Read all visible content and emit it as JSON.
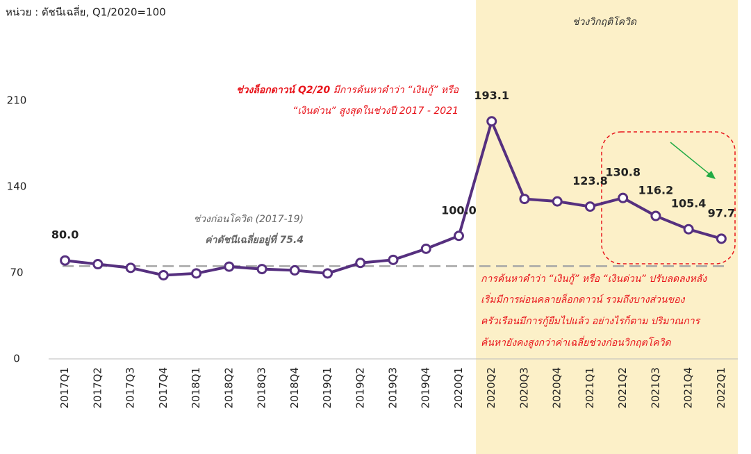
{
  "chart_data": {
    "type": "line",
    "unit_note": "หน่วย : ดัชนีเฉลี่ย, Q1/2020=100",
    "shaded_label": "ช่วงวิกฤติโควิด",
    "categories": [
      "2017Q1",
      "2017Q2",
      "2017Q3",
      "2017Q4",
      "2018Q1",
      "2018Q2",
      "2018Q3",
      "2018Q4",
      "2019Q1",
      "2019Q2",
      "2019Q3",
      "2019Q4",
      "2020Q1",
      "2020Q2",
      "2020Q3",
      "2020Q4",
      "2021Q1",
      "2021Q2",
      "2021Q3",
      "2021Q4",
      "2022Q1"
    ],
    "series": [
      {
        "name": "ดัชนี",
        "color": "#56307f",
        "values": [
          80,
          77,
          74,
          68,
          69.5,
          75,
          73,
          72,
          69.5,
          78,
          80.5,
          89.5,
          100,
          193.1,
          130,
          128,
          123.8,
          130.8,
          116.2,
          105.4,
          97.7
        ],
        "value_labels": [
          "80.0",
          null,
          null,
          null,
          null,
          null,
          null,
          null,
          null,
          null,
          null,
          null,
          "100.0",
          "193.1",
          null,
          null,
          "123.8",
          "130.8",
          "116.2",
          "105.4",
          "97.7"
        ]
      }
    ],
    "average": 75.4,
    "average_color": "#a6a6a6",
    "shade_color": "#fcf0c8",
    "ylim": [
      0,
      290
    ],
    "yticks": [
      0,
      70,
      140,
      210
    ],
    "pre_covid_note": [
      "ช่วงก่อนโควิด (2017-19)",
      "ค่าดัชนีเฉลี่ยอยู่ที่ 75.4"
    ],
    "lockdown_note": {
      "highlight": "ช่วงล็อกดาวน์ Q2/20",
      "rest": " มีการค้นหาคำว่า “เงินกู้” หรือ",
      "line2": "“เงินด่วน” สูงสุดในช่วงปี 2017 - 2021"
    },
    "recent_note": [
      "การค้นหาคำว่า “เงินกู้” หรือ “เงินด่วน” ปรับลดลงหลัง",
      "เริ่มมีการผ่อนคลายล็อกดาวน์ รวมถึงบางส่วนของ",
      "ครัวเรือนมีการกู้ยืมไปแล้ว อย่างไรก็ตาม ปริมาณการ",
      "ค้นหายังคงสูงกว่าค่าเฉลี่ยช่วงก่อนวิกฤตโควิด"
    ]
  }
}
